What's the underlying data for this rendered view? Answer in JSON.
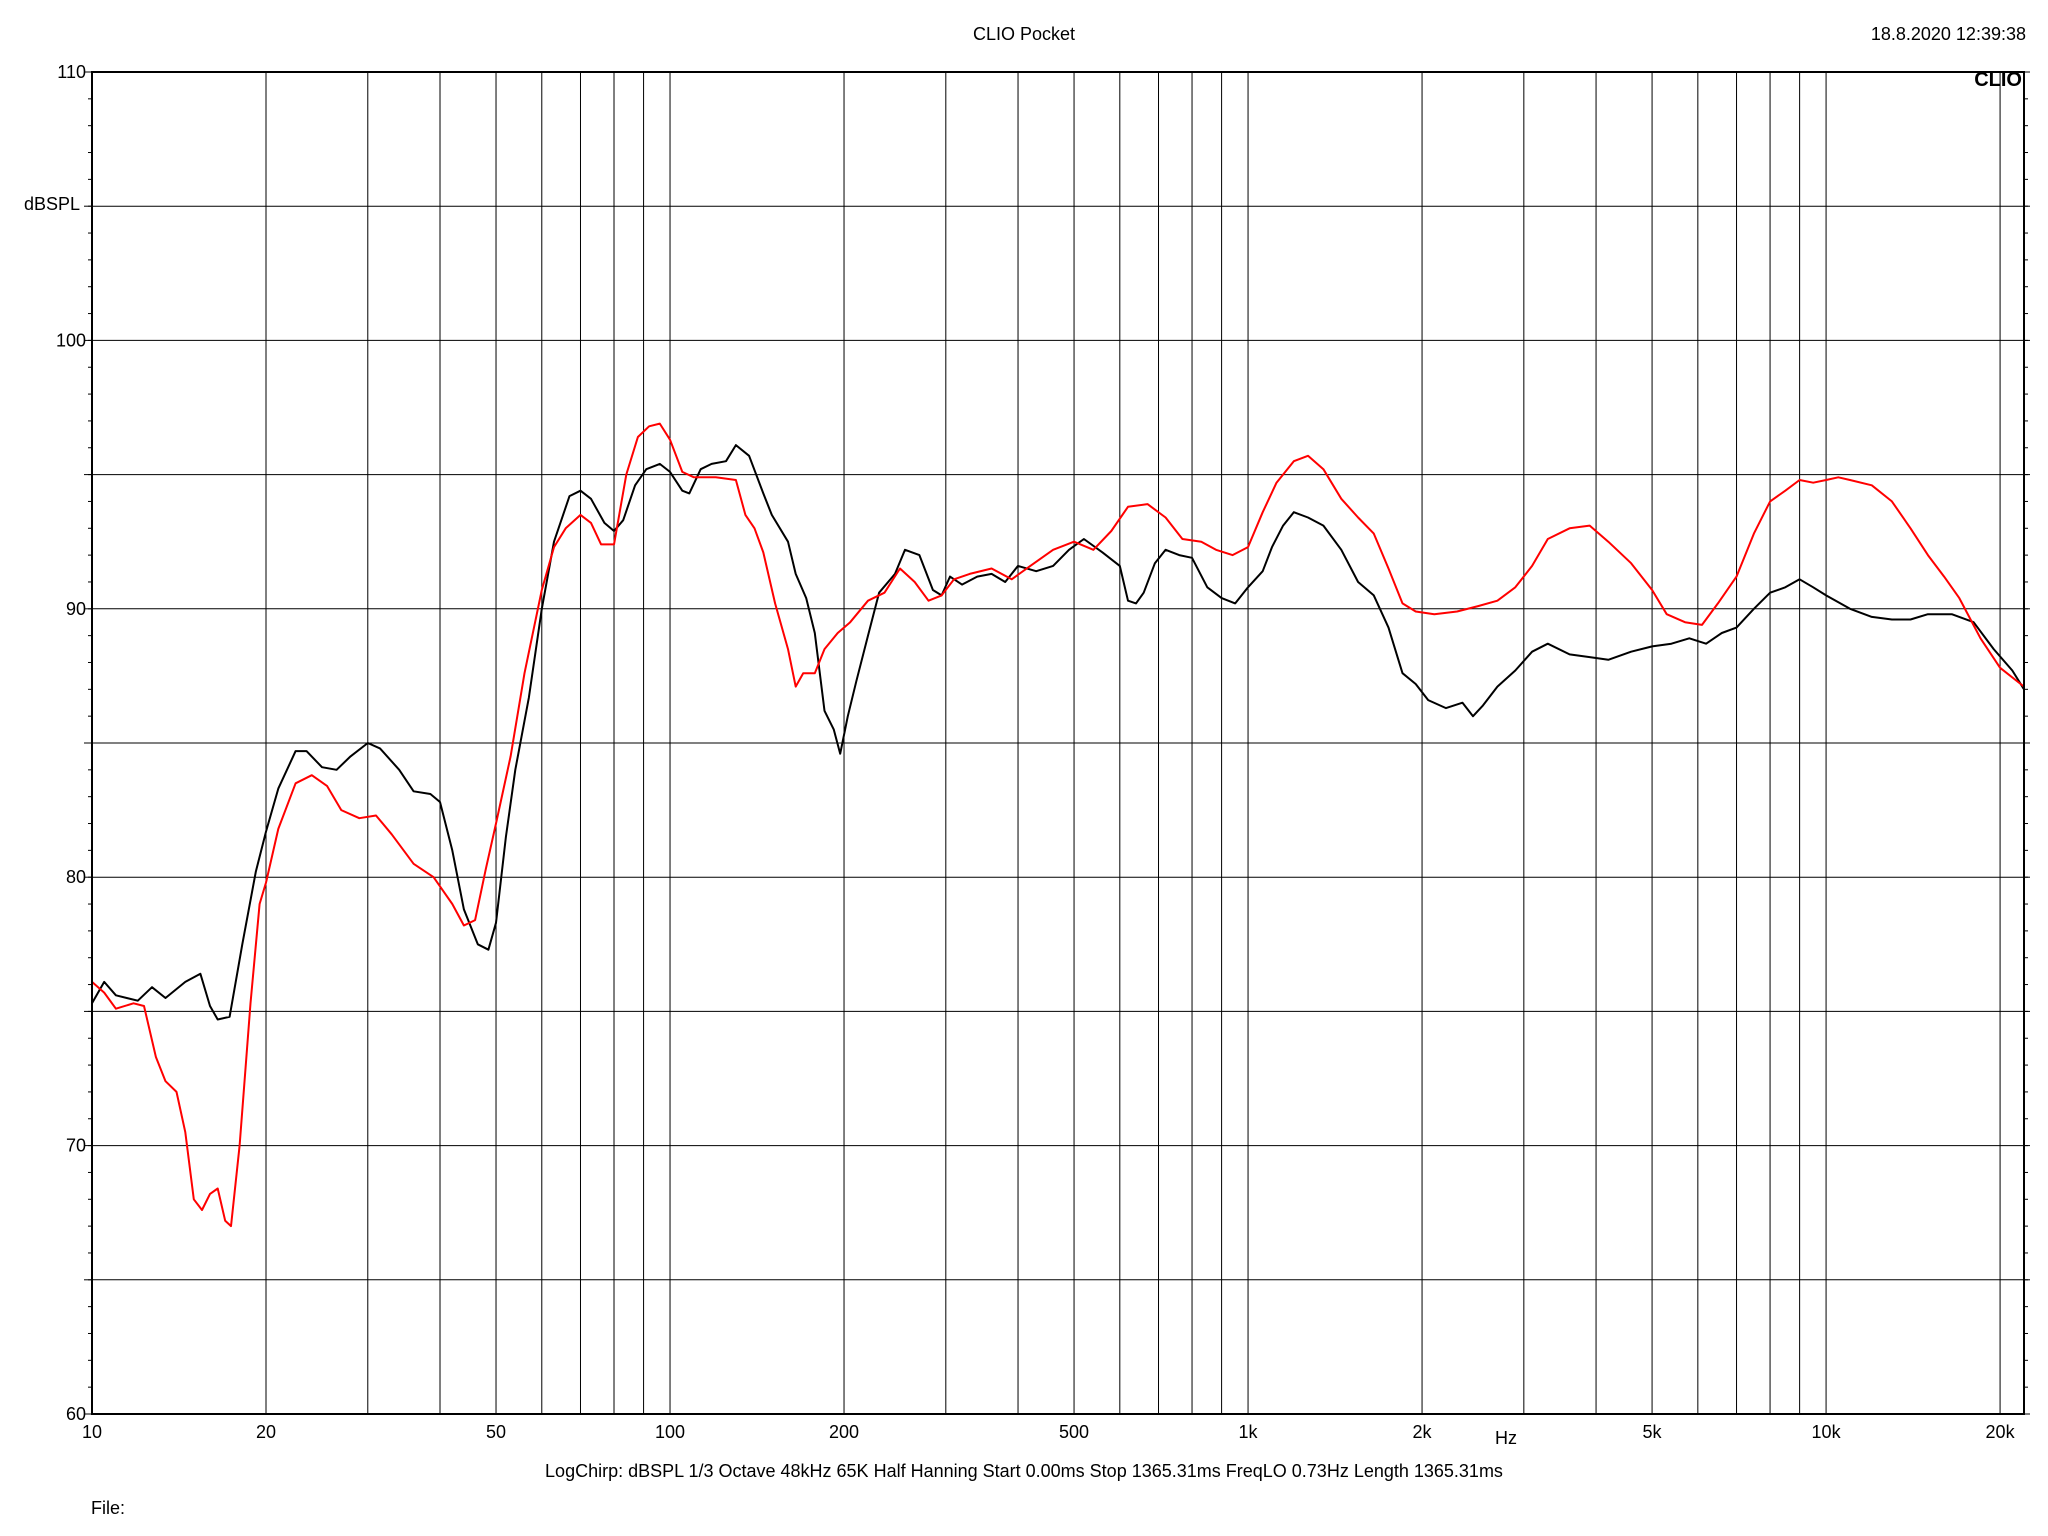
{
  "header": {
    "title": "CLIO Pocket",
    "timestamp": "18.8.2020 12:39:38",
    "logo": "CLIO"
  },
  "footer": {
    "params": "LogChirp:  dBSPL   1/3 Octave   48kHz   65K   Half Hanning   Start 0.00ms   Stop 1365.31ms   FreqLO 0.73Hz   Length 1365.31ms",
    "file_label": "File:"
  },
  "chart_data": {
    "type": "line",
    "title": "CLIO Pocket",
    "xlabel": "Hz",
    "ylabel": "dBSPL",
    "x_scale": "log",
    "xlim": [
      10,
      22000
    ],
    "ylim": [
      60,
      110
    ],
    "x_tick_labels": [
      {
        "value": 10,
        "label": "10"
      },
      {
        "value": 20,
        "label": "20"
      },
      {
        "value": 50,
        "label": "50"
      },
      {
        "value": 100,
        "label": "100"
      },
      {
        "value": 200,
        "label": "200"
      },
      {
        "value": 500,
        "label": "500"
      },
      {
        "value": 1000,
        "label": "1k"
      },
      {
        "value": 2000,
        "label": "2k"
      },
      {
        "value": 5000,
        "label": "5k"
      },
      {
        "value": 10000,
        "label": "10k"
      },
      {
        "value": 20000,
        "label": "20k"
      }
    ],
    "y_tick_labels": [
      {
        "value": 60,
        "label": "60"
      },
      {
        "value": 70,
        "label": "70"
      },
      {
        "value": 80,
        "label": "80"
      },
      {
        "value": 90,
        "label": "90"
      },
      {
        "value": 100,
        "label": "100"
      },
      {
        "value": 110,
        "label": "110"
      }
    ],
    "grid": true,
    "colors": {
      "series_black": "#000000",
      "series_red": "#ff0000",
      "grid": "#000000"
    },
    "series": [
      {
        "color": "#000000",
        "points": [
          [
            10,
            75.3
          ],
          [
            10.5,
            76.1
          ],
          [
            11,
            75.6
          ],
          [
            12,
            75.4
          ],
          [
            12.7,
            75.9
          ],
          [
            13.4,
            75.5
          ],
          [
            14.5,
            76.1
          ],
          [
            15.4,
            76.4
          ],
          [
            16,
            75.2
          ],
          [
            16.5,
            74.7
          ],
          [
            17.3,
            74.8
          ],
          [
            18.2,
            77.5
          ],
          [
            19.2,
            80.2
          ],
          [
            20,
            81.7
          ],
          [
            21,
            83.3
          ],
          [
            22.5,
            84.7
          ],
          [
            23.5,
            84.7
          ],
          [
            25,
            84.1
          ],
          [
            26.5,
            84
          ],
          [
            28,
            84.5
          ],
          [
            30,
            85
          ],
          [
            31.5,
            84.8
          ],
          [
            34,
            84
          ],
          [
            36,
            83.2
          ],
          [
            38.5,
            83.1
          ],
          [
            40,
            82.8
          ],
          [
            42,
            81
          ],
          [
            44,
            78.8
          ],
          [
            46.5,
            77.5
          ],
          [
            48.5,
            77.3
          ],
          [
            50,
            78.3
          ],
          [
            52,
            81.5
          ],
          [
            54,
            84
          ],
          [
            57,
            86.7
          ],
          [
            60,
            90
          ],
          [
            63,
            92.5
          ],
          [
            67,
            94.2
          ],
          [
            70,
            94.4
          ],
          [
            73,
            94.1
          ],
          [
            77,
            93.2
          ],
          [
            80,
            92.9
          ],
          [
            83,
            93.3
          ],
          [
            87,
            94.6
          ],
          [
            91,
            95.2
          ],
          [
            96,
            95.4
          ],
          [
            100,
            95.1
          ],
          [
            105,
            94.4
          ],
          [
            108,
            94.3
          ],
          [
            113,
            95.2
          ],
          [
            118,
            95.4
          ],
          [
            125,
            95.5
          ],
          [
            130,
            96.1
          ],
          [
            137,
            95.7
          ],
          [
            145,
            94.3
          ],
          [
            150,
            93.5
          ],
          [
            160,
            92.5
          ],
          [
            165,
            91.3
          ],
          [
            172,
            90.4
          ],
          [
            178,
            89.1
          ],
          [
            185,
            86.2
          ],
          [
            192,
            85.5
          ],
          [
            197,
            84.6
          ],
          [
            203,
            86
          ],
          [
            210,
            87.3
          ],
          [
            220,
            89
          ],
          [
            230,
            90.6
          ],
          [
            245,
            91.3
          ],
          [
            255,
            92.2
          ],
          [
            270,
            92
          ],
          [
            285,
            90.7
          ],
          [
            295,
            90.5
          ],
          [
            305,
            91.2
          ],
          [
            320,
            90.9
          ],
          [
            340,
            91.2
          ],
          [
            360,
            91.3
          ],
          [
            380,
            91
          ],
          [
            400,
            91.6
          ],
          [
            430,
            91.4
          ],
          [
            460,
            91.6
          ],
          [
            490,
            92.2
          ],
          [
            520,
            92.6
          ],
          [
            560,
            92.1
          ],
          [
            600,
            91.6
          ],
          [
            620,
            90.3
          ],
          [
            640,
            90.2
          ],
          [
            660,
            90.6
          ],
          [
            690,
            91.7
          ],
          [
            720,
            92.2
          ],
          [
            760,
            92
          ],
          [
            800,
            91.9
          ],
          [
            850,
            90.8
          ],
          [
            900,
            90.4
          ],
          [
            950,
            90.2
          ],
          [
            1000,
            90.8
          ],
          [
            1060,
            91.4
          ],
          [
            1100,
            92.3
          ],
          [
            1150,
            93.1
          ],
          [
            1200,
            93.6
          ],
          [
            1270,
            93.4
          ],
          [
            1350,
            93.1
          ],
          [
            1450,
            92.2
          ],
          [
            1550,
            91
          ],
          [
            1650,
            90.5
          ],
          [
            1750,
            89.3
          ],
          [
            1850,
            87.6
          ],
          [
            1950,
            87.2
          ],
          [
            2050,
            86.6
          ],
          [
            2200,
            86.3
          ],
          [
            2350,
            86.5
          ],
          [
            2450,
            86
          ],
          [
            2550,
            86.4
          ],
          [
            2700,
            87.1
          ],
          [
            2900,
            87.7
          ],
          [
            3100,
            88.4
          ],
          [
            3300,
            88.7
          ],
          [
            3600,
            88.3
          ],
          [
            3900,
            88.2
          ],
          [
            4200,
            88.1
          ],
          [
            4600,
            88.4
          ],
          [
            5000,
            88.6
          ],
          [
            5400,
            88.7
          ],
          [
            5800,
            88.9
          ],
          [
            6200,
            88.7
          ],
          [
            6600,
            89.1
          ],
          [
            7000,
            89.3
          ],
          [
            7500,
            90
          ],
          [
            8000,
            90.6
          ],
          [
            8500,
            90.8
          ],
          [
            9000,
            91.1
          ],
          [
            9500,
            90.8
          ],
          [
            10000,
            90.5
          ],
          [
            11000,
            90
          ],
          [
            12000,
            89.7
          ],
          [
            13000,
            89.6
          ],
          [
            14000,
            89.6
          ],
          [
            15000,
            89.8
          ],
          [
            16500,
            89.8
          ],
          [
            18000,
            89.5
          ],
          [
            19500,
            88.5
          ],
          [
            21000,
            87.7
          ],
          [
            22000,
            87
          ]
        ]
      },
      {
        "color": "#ff0000",
        "points": [
          [
            10,
            76.1
          ],
          [
            10.5,
            75.7
          ],
          [
            11,
            75.1
          ],
          [
            11.8,
            75.3
          ],
          [
            12.3,
            75.2
          ],
          [
            12.9,
            73.3
          ],
          [
            13.4,
            72.4
          ],
          [
            14,
            72
          ],
          [
            14.5,
            70.5
          ],
          [
            15,
            68
          ],
          [
            15.5,
            67.6
          ],
          [
            16,
            68.2
          ],
          [
            16.5,
            68.4
          ],
          [
            17,
            67.2
          ],
          [
            17.4,
            67
          ],
          [
            18,
            70
          ],
          [
            18.8,
            75.3
          ],
          [
            19.5,
            79
          ],
          [
            20,
            79.8
          ],
          [
            21,
            81.8
          ],
          [
            22.5,
            83.5
          ],
          [
            24,
            83.8
          ],
          [
            25.5,
            83.4
          ],
          [
            27,
            82.5
          ],
          [
            29,
            82.2
          ],
          [
            31,
            82.3
          ],
          [
            33,
            81.6
          ],
          [
            36,
            80.5
          ],
          [
            39,
            80
          ],
          [
            42,
            79
          ],
          [
            44,
            78.2
          ],
          [
            46,
            78.4
          ],
          [
            48,
            80.3
          ],
          [
            50,
            82
          ],
          [
            53,
            84.5
          ],
          [
            56,
            87.6
          ],
          [
            60,
            90.7
          ],
          [
            63,
            92.3
          ],
          [
            66,
            93
          ],
          [
            70,
            93.5
          ],
          [
            73,
            93.2
          ],
          [
            76,
            92.4
          ],
          [
            80,
            92.4
          ],
          [
            84,
            95
          ],
          [
            88,
            96.4
          ],
          [
            92,
            96.8
          ],
          [
            96,
            96.9
          ],
          [
            100,
            96.3
          ],
          [
            105,
            95.1
          ],
          [
            110,
            94.9
          ],
          [
            120,
            94.9
          ],
          [
            130,
            94.8
          ],
          [
            135,
            93.5
          ],
          [
            140,
            93
          ],
          [
            145,
            92.1
          ],
          [
            152,
            90.2
          ],
          [
            160,
            88.5
          ],
          [
            165,
            87.1
          ],
          [
            170,
            87.6
          ],
          [
            178,
            87.6
          ],
          [
            185,
            88.5
          ],
          [
            195,
            89.1
          ],
          [
            205,
            89.5
          ],
          [
            220,
            90.3
          ],
          [
            235,
            90.6
          ],
          [
            250,
            91.5
          ],
          [
            265,
            91
          ],
          [
            280,
            90.3
          ],
          [
            295,
            90.5
          ],
          [
            310,
            91.1
          ],
          [
            330,
            91.3
          ],
          [
            360,
            91.5
          ],
          [
            390,
            91.1
          ],
          [
            420,
            91.6
          ],
          [
            460,
            92.2
          ],
          [
            500,
            92.5
          ],
          [
            540,
            92.2
          ],
          [
            580,
            92.9
          ],
          [
            620,
            93.8
          ],
          [
            670,
            93.9
          ],
          [
            720,
            93.4
          ],
          [
            770,
            92.6
          ],
          [
            830,
            92.5
          ],
          [
            880,
            92.2
          ],
          [
            940,
            92
          ],
          [
            1000,
            92.3
          ],
          [
            1060,
            93.6
          ],
          [
            1120,
            94.7
          ],
          [
            1200,
            95.5
          ],
          [
            1270,
            95.7
          ],
          [
            1350,
            95.2
          ],
          [
            1450,
            94.1
          ],
          [
            1550,
            93.4
          ],
          [
            1650,
            92.8
          ],
          [
            1750,
            91.5
          ],
          [
            1850,
            90.2
          ],
          [
            1950,
            89.9
          ],
          [
            2100,
            89.8
          ],
          [
            2300,
            89.9
          ],
          [
            2500,
            90.1
          ],
          [
            2700,
            90.3
          ],
          [
            2900,
            90.8
          ],
          [
            3100,
            91.6
          ],
          [
            3300,
            92.6
          ],
          [
            3600,
            93
          ],
          [
            3900,
            93.1
          ],
          [
            4200,
            92.5
          ],
          [
            4600,
            91.7
          ],
          [
            5000,
            90.7
          ],
          [
            5300,
            89.8
          ],
          [
            5700,
            89.5
          ],
          [
            6100,
            89.4
          ],
          [
            6500,
            90.2
          ],
          [
            7000,
            91.2
          ],
          [
            7500,
            92.8
          ],
          [
            8000,
            94
          ],
          [
            8500,
            94.4
          ],
          [
            9000,
            94.8
          ],
          [
            9500,
            94.7
          ],
          [
            10000,
            94.8
          ],
          [
            10500,
            94.9
          ],
          [
            11000,
            94.8
          ],
          [
            12000,
            94.6
          ],
          [
            13000,
            94
          ],
          [
            14000,
            93
          ],
          [
            15000,
            92
          ],
          [
            16000,
            91.2
          ],
          [
            17000,
            90.4
          ],
          [
            18500,
            88.9
          ],
          [
            20000,
            87.8
          ],
          [
            22000,
            87.1
          ]
        ]
      }
    ]
  }
}
